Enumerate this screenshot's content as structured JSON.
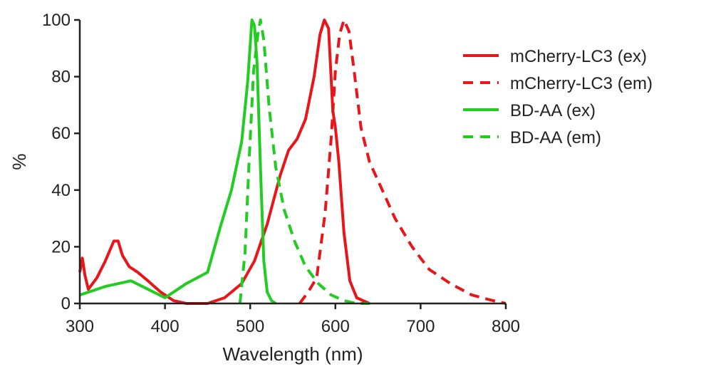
{
  "chart_data": {
    "type": "line",
    "title": "",
    "xlabel": "Wavelength (nm)",
    "ylabel": "%",
    "xlim": [
      300,
      800
    ],
    "ylim": [
      0,
      100
    ],
    "xticks": [
      300,
      400,
      500,
      600,
      700,
      800
    ],
    "yticks": [
      0,
      20,
      40,
      60,
      80,
      100
    ],
    "grid": false,
    "legend_position": "top-right",
    "series": [
      {
        "name": "mCherry-LC3 (ex)",
        "color": "#e8161b",
        "dash": "solid",
        "points": [
          [
            300,
            11
          ],
          [
            303,
            16
          ],
          [
            306,
            10
          ],
          [
            310,
            5
          ],
          [
            320,
            9
          ],
          [
            330,
            15
          ],
          [
            340,
            22
          ],
          [
            345,
            22
          ],
          [
            350,
            17
          ],
          [
            358,
            13
          ],
          [
            368,
            11
          ],
          [
            380,
            8
          ],
          [
            395,
            4
          ],
          [
            410,
            1
          ],
          [
            425,
            0
          ],
          [
            450,
            0
          ],
          [
            470,
            2
          ],
          [
            490,
            7
          ],
          [
            505,
            15
          ],
          [
            520,
            28
          ],
          [
            535,
            45
          ],
          [
            545,
            54
          ],
          [
            555,
            58
          ],
          [
            565,
            65
          ],
          [
            575,
            80
          ],
          [
            582,
            95
          ],
          [
            587,
            100
          ],
          [
            592,
            97
          ],
          [
            597,
            68
          ],
          [
            600,
            62
          ],
          [
            604,
            50
          ],
          [
            610,
            25
          ],
          [
            617,
            8
          ],
          [
            625,
            2
          ],
          [
            640,
            0
          ]
        ]
      },
      {
        "name": "mCherry-LC3 (em)",
        "color": "#e8161b",
        "dash": "dashed",
        "points": [
          [
            558,
            0
          ],
          [
            568,
            4
          ],
          [
            578,
            9
          ],
          [
            588,
            32
          ],
          [
            595,
            58
          ],
          [
            600,
            82
          ],
          [
            605,
            95
          ],
          [
            610,
            100
          ],
          [
            616,
            96
          ],
          [
            622,
            82
          ],
          [
            630,
            62
          ],
          [
            640,
            50
          ],
          [
            655,
            40
          ],
          [
            670,
            30
          ],
          [
            690,
            20
          ],
          [
            710,
            12
          ],
          [
            735,
            7
          ],
          [
            760,
            3
          ],
          [
            785,
            1
          ],
          [
            800,
            0
          ]
        ]
      },
      {
        "name": "BD-AA (ex)",
        "color": "#22cc22",
        "dash": "solid",
        "points": [
          [
            300,
            3
          ],
          [
            330,
            6
          ],
          [
            360,
            8
          ],
          [
            380,
            5
          ],
          [
            400,
            2
          ],
          [
            425,
            7
          ],
          [
            450,
            11
          ],
          [
            465,
            27
          ],
          [
            478,
            40
          ],
          [
            490,
            57
          ],
          [
            497,
            78
          ],
          [
            502,
            100
          ],
          [
            505,
            98
          ],
          [
            508,
            85
          ],
          [
            512,
            48
          ],
          [
            516,
            15
          ],
          [
            520,
            4
          ],
          [
            525,
            1
          ],
          [
            530,
            0
          ]
        ]
      },
      {
        "name": "BD-AA (em)",
        "color": "#22cc22",
        "dash": "dashed",
        "points": [
          [
            488,
            0
          ],
          [
            494,
            18
          ],
          [
            499,
            52
          ],
          [
            504,
            82
          ],
          [
            509,
            95
          ],
          [
            512,
            100
          ],
          [
            516,
            93
          ],
          [
            522,
            70
          ],
          [
            530,
            48
          ],
          [
            540,
            33
          ],
          [
            552,
            22
          ],
          [
            565,
            13
          ],
          [
            580,
            7
          ],
          [
            595,
            3
          ],
          [
            610,
            1
          ],
          [
            625,
            0
          ],
          [
            640,
            0
          ]
        ]
      }
    ]
  }
}
